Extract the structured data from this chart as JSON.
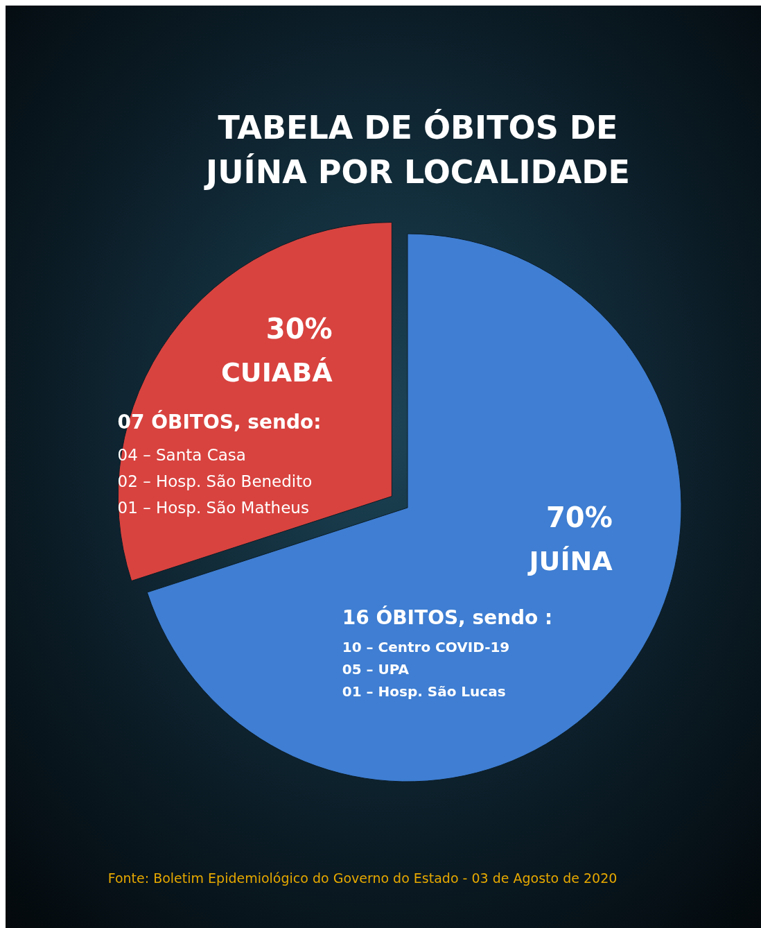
{
  "chart_data": {
    "type": "pie",
    "title": "TABELA DE ÓBITOS DE\nJUÍNA POR LOCALIDADE",
    "categories": [
      "JUÍNA",
      "CUIABÁ"
    ],
    "values": [
      70,
      30
    ],
    "value_labels": [
      "70%",
      "30%"
    ],
    "colors": [
      "#3f7ed2",
      "#d8433f"
    ],
    "annotations": [
      "16 ÓBITOS, sendo :\n10 – Centro COVID-19\n05 – UPA\n01 – Hosp. São Lucas",
      "07 ÓBITOS, sendo:\n04 – Santa Casa\n02 – Hosp. São Benedito\n01 – Hosp. São Matheus",
      "Fonte: Boletim Epidemiológico do Governo do Estado  - 03 de Agosto de 2020"
    ]
  }
}
